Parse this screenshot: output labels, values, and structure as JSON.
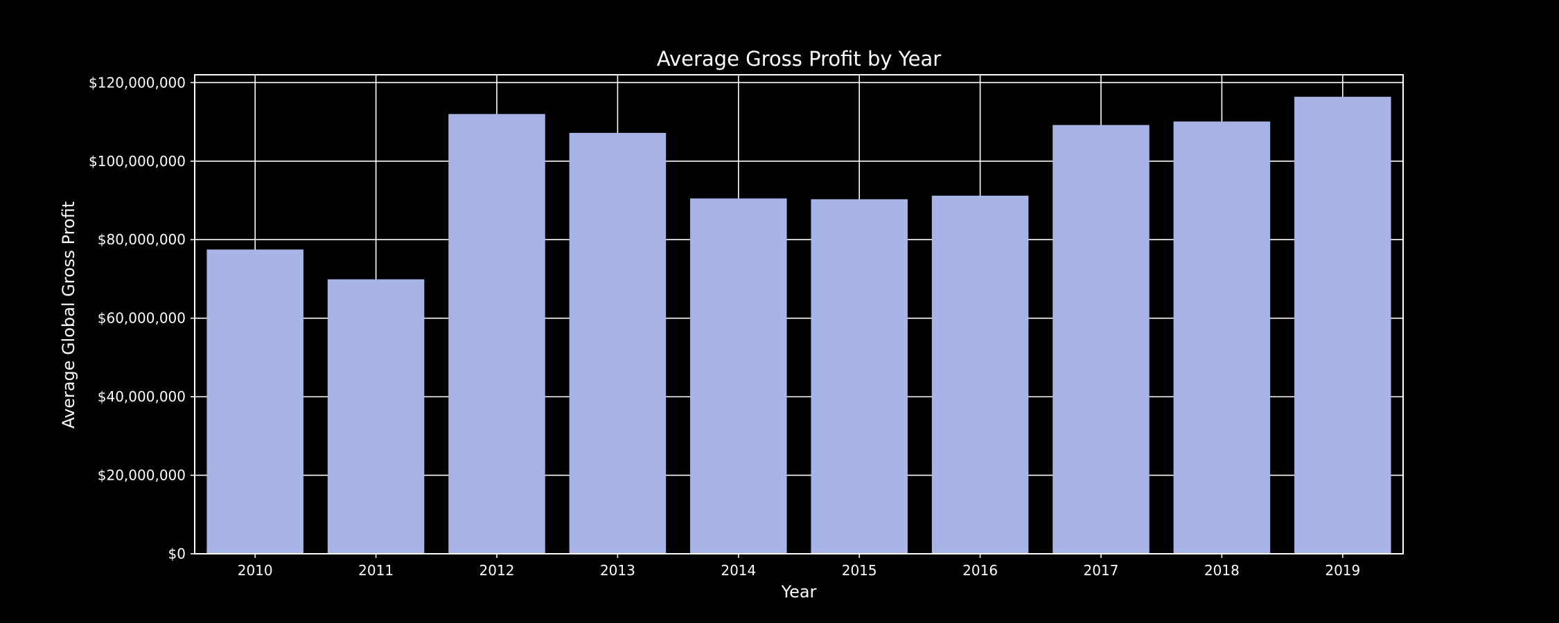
{
  "chart_data": {
    "type": "bar",
    "title": "Average Gross Profit by Year",
    "xlabel": "Year",
    "ylabel": "Average Global Gross Profit",
    "categories": [
      "2010",
      "2011",
      "2012",
      "2013",
      "2014",
      "2015",
      "2016",
      "2017",
      "2018",
      "2019"
    ],
    "values": [
      77500000,
      69900000,
      112000000,
      107200000,
      90500000,
      90300000,
      91200000,
      109200000,
      110100000,
      116400000
    ],
    "ylim": [
      0,
      122000000
    ],
    "yticks": [
      0,
      20000000,
      40000000,
      60000000,
      80000000,
      100000000,
      120000000
    ],
    "ytick_labels": [
      "$0",
      "$20,000,000",
      "$40,000,000",
      "$60,000,000",
      "$80,000,000",
      "$100,000,000",
      "$120,000,000"
    ],
    "grid": true,
    "colors": {
      "background": "#000000",
      "bar": "#a8b3e6",
      "grid": "#ffffff",
      "text": "#ffffff"
    }
  }
}
